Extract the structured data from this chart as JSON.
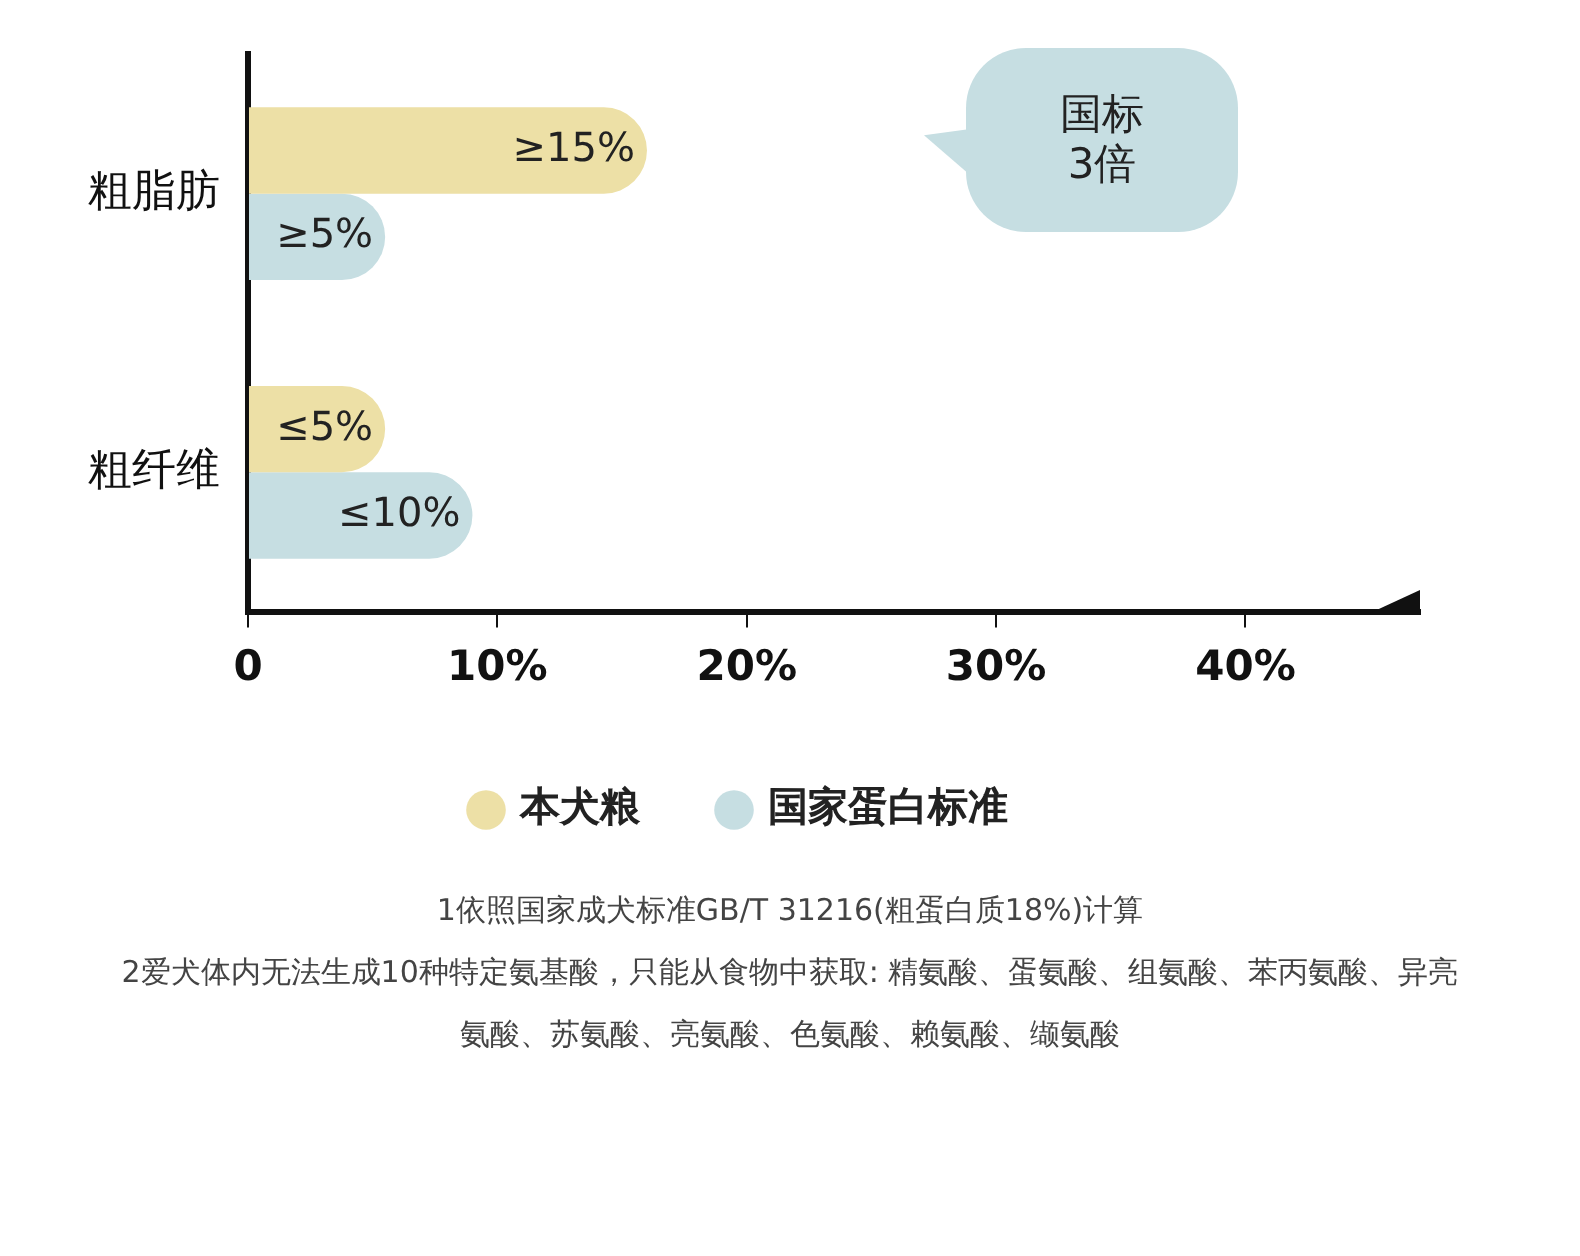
{
  "chart_data": {
    "type": "bar",
    "orientation": "horizontal",
    "categories": [
      "粗脂肪",
      "粗纤维"
    ],
    "series": [
      {
        "name": "本犬粮",
        "color": "#ede0a6",
        "values": [
          16,
          5.5
        ],
        "value_labels": [
          "≥15%",
          "≤5%"
        ]
      },
      {
        "name": "国家蛋白标准",
        "color": "#c6dee2",
        "values": [
          5.5,
          9
        ],
        "value_labels": [
          "≥5%",
          "≤10%"
        ]
      }
    ],
    "xlim": [
      0,
      47
    ],
    "xticks": [
      0,
      {
        "value": 10,
        "label": "10%"
      },
      {
        "value": 20,
        "label": "20%"
      },
      {
        "value": 30,
        "label": "30%"
      },
      {
        "value": 40,
        "label": "40%"
      }
    ],
    "grid": false,
    "legend": "bottom",
    "annotations": [
      "国标\n3倍",
      "1依照国家成犬标准GB/T 31216(粗蛋白质18%)计算",
      "2爱犬体内无法生成10种特定氨基酸，只能从食物中获取: 精氨酸、蛋氨酸、组氨酸、苯丙氨酸、异亮氨酸、苏氨酸、亮氨酸、色氨酸、赖氨酸、缬氨酸"
    ]
  }
}
